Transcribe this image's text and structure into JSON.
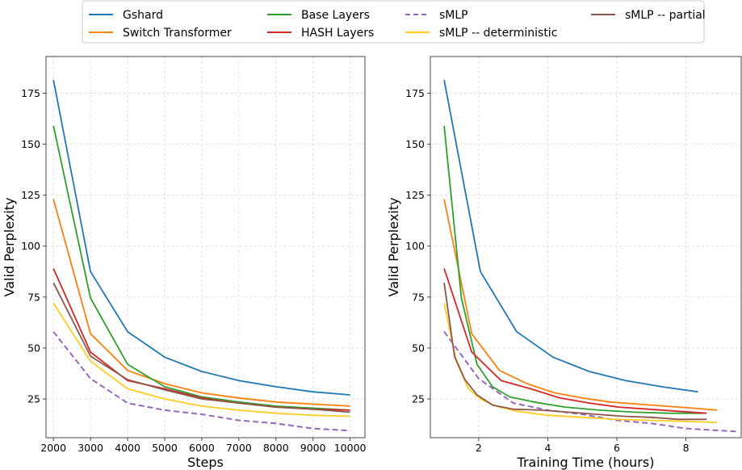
{
  "legend": {
    "placement": "top-center",
    "entries": [
      {
        "label": "Gshard",
        "color": "#1f77b4",
        "dashed": false
      },
      {
        "label": "Switch Transformer",
        "color": "#ff7f0e",
        "dashed": false
      },
      {
        "label": "Base Layers",
        "color": "#2ca02c",
        "dashed": false
      },
      {
        "label": "HASH Layers",
        "color": "#d62728",
        "dashed": false
      },
      {
        "label": "sMLP",
        "color": "#9467bd",
        "dashed": true
      },
      {
        "label": "sMLP -- deterministic",
        "color": "#ffcc22",
        "dashed": false
      },
      {
        "label": "sMLP -- partial",
        "color": "#8c564b",
        "dashed": false
      }
    ]
  },
  "chart_data": [
    {
      "type": "line",
      "title": "",
      "xlabel": "Steps",
      "ylabel": "Valid Perplexity",
      "xlim": [
        1800,
        10400
      ],
      "ylim": [
        6,
        193
      ],
      "xticks": [
        2000,
        3000,
        4000,
        5000,
        6000,
        7000,
        8000,
        9000,
        10000
      ],
      "yticks": [
        25,
        50,
        75,
        100,
        125,
        150,
        175
      ],
      "grid": true,
      "series": [
        {
          "name": "Gshard",
          "x": [
            2000,
            3000,
            4000,
            5000,
            6000,
            7000,
            8000,
            9000,
            10000
          ],
          "y": [
            181.5,
            87.5,
            58,
            45.5,
            38.5,
            34,
            31,
            28.5,
            27
          ]
        },
        {
          "name": "Switch Transformer",
          "x": [
            2000,
            3000,
            4000,
            5000,
            6000,
            7000,
            8000,
            9000,
            10000
          ],
          "y": [
            123,
            57,
            39,
            32.5,
            28,
            25.5,
            23.5,
            22.5,
            21.5
          ]
        },
        {
          "name": "Base Layers",
          "x": [
            2000,
            3000,
            4000,
            5000,
            6000,
            7000,
            8000,
            9000,
            10000
          ],
          "y": [
            159,
            74.5,
            42,
            31,
            26,
            23.5,
            21.5,
            20.5,
            19.5
          ]
        },
        {
          "name": "HASH Layers",
          "x": [
            2000,
            3000,
            4000,
            5000,
            6000,
            7000,
            8000,
            9000,
            10000
          ],
          "y": [
            89,
            48,
            34,
            30,
            25.5,
            23,
            21,
            20,
            19.5
          ]
        },
        {
          "name": "sMLP",
          "x": [
            2000,
            3000,
            4000,
            5000,
            6000,
            7000,
            8000,
            9000,
            10000
          ],
          "y": [
            58,
            35,
            23,
            19.5,
            17.5,
            14.5,
            13,
            10.5,
            9.5
          ]
        },
        {
          "name": "sMLP -- deterministic",
          "x": [
            2000,
            3000,
            4000,
            5000,
            6000,
            7000,
            8000,
            9000,
            10000
          ],
          "y": [
            72,
            43.5,
            30,
            25,
            21.5,
            19.5,
            18,
            17,
            16.5
          ]
        },
        {
          "name": "sMLP -- partial",
          "x": [
            2000,
            3000,
            4000,
            5000,
            6000,
            7000,
            8000,
            9000,
            10000
          ],
          "y": [
            82,
            46,
            34.5,
            29.5,
            25,
            23,
            21,
            20,
            18.5
          ]
        }
      ]
    },
    {
      "type": "line",
      "title": "",
      "xlabel": "Training Time (hours)",
      "ylabel": "Valid Perplexity",
      "xlim": [
        0.6,
        9.6
      ],
      "ylim": [
        6,
        193
      ],
      "xticks": [
        2,
        4,
        6,
        8
      ],
      "yticks": [
        25,
        50,
        75,
        100,
        125,
        150,
        175
      ],
      "grid": true,
      "series": [
        {
          "name": "Gshard",
          "x": [
            1.0,
            2.05,
            3.1,
            4.15,
            5.2,
            6.25,
            7.3,
            8.35
          ],
          "y": [
            181.5,
            87.5,
            58,
            45.5,
            38.5,
            34,
            31,
            28.5
          ]
        },
        {
          "name": "Switch Transformer",
          "x": [
            1.0,
            1.8,
            2.6,
            3.4,
            4.2,
            5.0,
            5.8,
            6.6,
            7.4,
            8.2,
            8.9
          ],
          "y": [
            123,
            57,
            39,
            32.5,
            28,
            25.5,
            23.5,
            22.5,
            21.5,
            20.5,
            19.5
          ]
        },
        {
          "name": "Base Layers",
          "x": [
            1.0,
            1.5,
            1.95,
            2.4,
            2.9,
            3.6,
            4.5,
            5.5,
            6.5,
            7.5,
            8.5
          ],
          "y": [
            159,
            74.5,
            42,
            31,
            26,
            23.5,
            21,
            19.5,
            18.5,
            18,
            18
          ]
        },
        {
          "name": "HASH Layers",
          "x": [
            1.0,
            1.8,
            2.65,
            3.5,
            4.35,
            5.2,
            6.05,
            6.9,
            7.75,
            8.6
          ],
          "y": [
            89,
            48,
            34,
            30,
            25.5,
            23,
            21,
            20,
            19,
            18
          ]
        },
        {
          "name": "sMLP",
          "x": [
            1.0,
            2.0,
            3.0,
            4.0,
            5.0,
            6.0,
            7.0,
            8.0,
            9.0,
            9.5
          ],
          "y": [
            58,
            35,
            23,
            19.5,
            17.5,
            14.5,
            13,
            10.5,
            9.5,
            9
          ]
        },
        {
          "name": "sMLP -- deterministic",
          "x": [
            1.0,
            1.35,
            1.7,
            2.05,
            2.5,
            3.1,
            4.0,
            5.0,
            6.0,
            7.0,
            8.0,
            8.9
          ],
          "y": [
            72,
            43.5,
            30,
            25,
            21.5,
            19,
            17,
            16,
            15,
            14.5,
            14,
            13.5
          ]
        },
        {
          "name": "sMLP -- partial",
          "x": [
            1.0,
            1.3,
            1.6,
            1.95,
            2.4,
            3.0,
            3.8,
            4.6,
            5.4,
            6.2,
            7.0,
            7.8,
            8.6
          ],
          "y": [
            82,
            46,
            34.5,
            27,
            22,
            20,
            19.5,
            18.5,
            17.5,
            16.5,
            16,
            15,
            15
          ]
        }
      ]
    }
  ]
}
